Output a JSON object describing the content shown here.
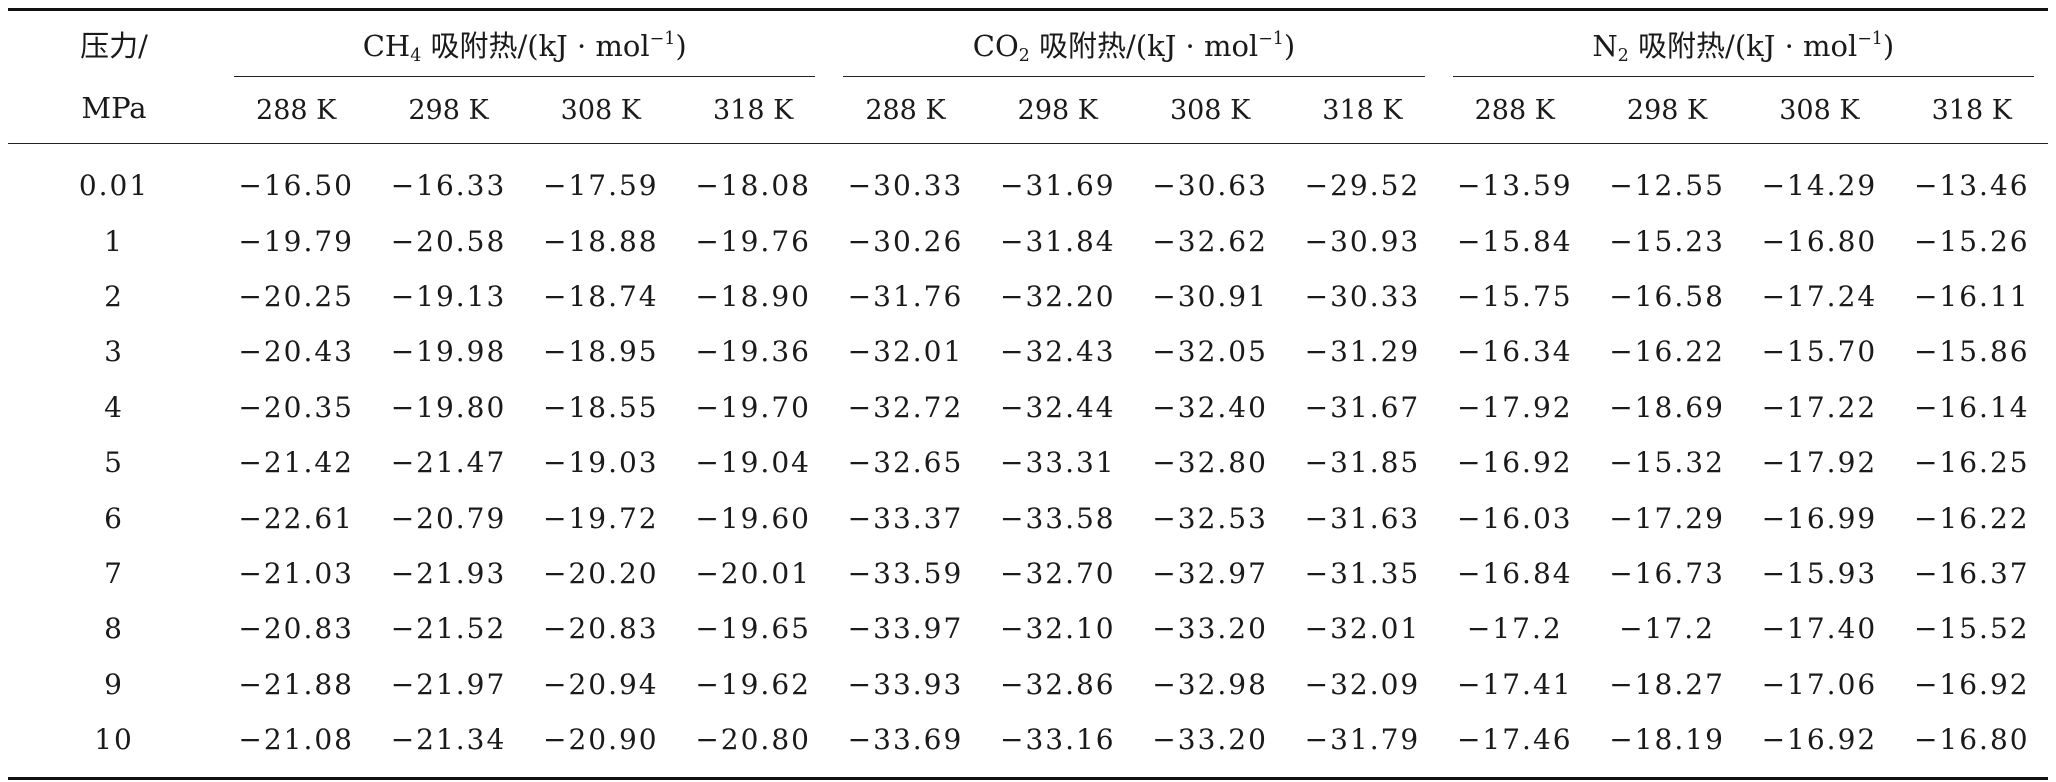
{
  "table": {
    "pressure_header": {
      "line1": "压力/",
      "line2": "MPa"
    },
    "groups": [
      {
        "gas": "CH",
        "sub": "4",
        "label": " 吸附热/(kJ · mol",
        "sup": "−1",
        "close": ")"
      },
      {
        "gas": "CO",
        "sub": "2",
        "label": " 吸附热/(kJ · mol",
        "sup": "−1",
        "close": ")"
      },
      {
        "gas": "N",
        "sub": "2",
        "label": " 吸附热/(kJ · mol",
        "sup": "−1",
        "close": ")"
      }
    ],
    "temperatures": [
      "288 K",
      "298 K",
      "308 K",
      "318 K"
    ],
    "rows": [
      {
        "pressure": "0.01",
        "values": [
          "−16.50",
          "−16.33",
          "−17.59",
          "−18.08",
          "−30.33",
          "−31.69",
          "−30.63",
          "−29.52",
          "−13.59",
          "−12.55",
          "−14.29",
          "−13.46"
        ]
      },
      {
        "pressure": "1",
        "values": [
          "−19.79",
          "−20.58",
          "−18.88",
          "−19.76",
          "−30.26",
          "−31.84",
          "−32.62",
          "−30.93",
          "−15.84",
          "−15.23",
          "−16.80",
          "−15.26"
        ]
      },
      {
        "pressure": "2",
        "values": [
          "−20.25",
          "−19.13",
          "−18.74",
          "−18.90",
          "−31.76",
          "−32.20",
          "−30.91",
          "−30.33",
          "−15.75",
          "−16.58",
          "−17.24",
          "−16.11"
        ]
      },
      {
        "pressure": "3",
        "values": [
          "−20.43",
          "−19.98",
          "−18.95",
          "−19.36",
          "−32.01",
          "−32.43",
          "−32.05",
          "−31.29",
          "−16.34",
          "−16.22",
          "−15.70",
          "−15.86"
        ]
      },
      {
        "pressure": "4",
        "values": [
          "−20.35",
          "−19.80",
          "−18.55",
          "−19.70",
          "−32.72",
          "−32.44",
          "−32.40",
          "−31.67",
          "−17.92",
          "−18.69",
          "−17.22",
          "−16.14"
        ]
      },
      {
        "pressure": "5",
        "values": [
          "−21.42",
          "−21.47",
          "−19.03",
          "−19.04",
          "−32.65",
          "−33.31",
          "−32.80",
          "−31.85",
          "−16.92",
          "−15.32",
          "−17.92",
          "−16.25"
        ]
      },
      {
        "pressure": "6",
        "values": [
          "−22.61",
          "−20.79",
          "−19.72",
          "−19.60",
          "−33.37",
          "−33.58",
          "−32.53",
          "−31.63",
          "−16.03",
          "−17.29",
          "−16.99",
          "−16.22"
        ]
      },
      {
        "pressure": "7",
        "values": [
          "−21.03",
          "−21.93",
          "−20.20",
          "−20.01",
          "−33.59",
          "−32.70",
          "−32.97",
          "−31.35",
          "−16.84",
          "−16.73",
          "−15.93",
          "−16.37"
        ]
      },
      {
        "pressure": "8",
        "values": [
          "−20.83",
          "−21.52",
          "−20.83",
          "−19.65",
          "−33.97",
          "−32.10",
          "−33.20",
          "−32.01",
          "−17.2",
          "−17.2",
          "−17.40",
          "−15.52"
        ]
      },
      {
        "pressure": "9",
        "values": [
          "−21.88",
          "−21.97",
          "−20.94",
          "−19.62",
          "−33.93",
          "−32.86",
          "−32.98",
          "−32.09",
          "−17.41",
          "−18.27",
          "−17.06",
          "−16.92"
        ]
      },
      {
        "pressure": "10",
        "values": [
          "−21.08",
          "−21.34",
          "−20.90",
          "−20.80",
          "−33.69",
          "−33.16",
          "−33.20",
          "−31.79",
          "−17.46",
          "−18.19",
          "−16.92",
          "−16.80"
        ]
      }
    ]
  }
}
